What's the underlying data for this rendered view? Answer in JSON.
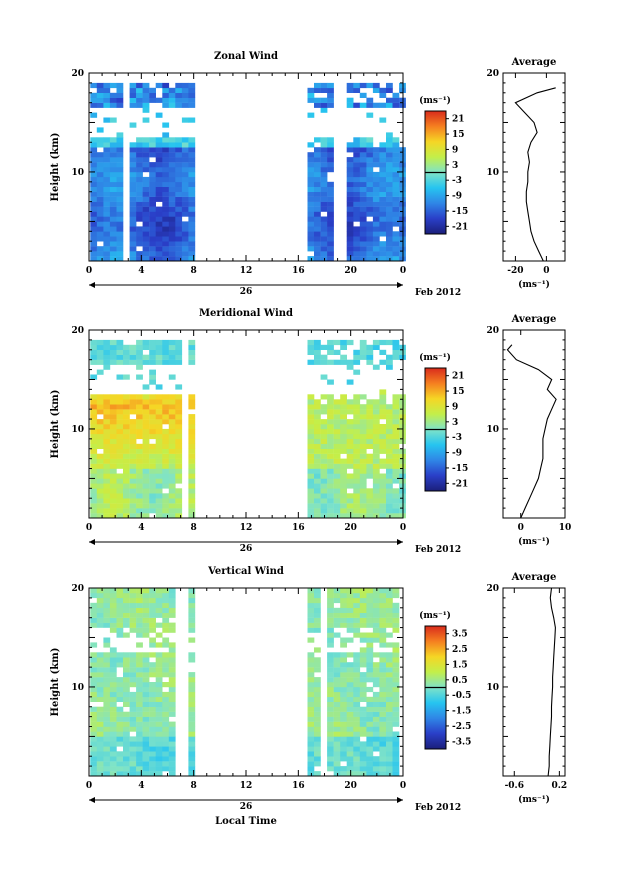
{
  "chart_data": [
    {
      "type": "heatmap",
      "title": "Zonal Wind",
      "ylabel": "Height (km)",
      "xlabel": "",
      "x_ticks": [
        "0",
        "4",
        "8",
        "12",
        "16",
        "20",
        "0"
      ],
      "y_ticks": [
        "10",
        "20"
      ],
      "xlim_hours": [
        0,
        24
      ],
      "ylim_km": [
        1,
        20
      ],
      "date_label": "26",
      "month_label": "Feb 2012",
      "unit_label": "(ms⁻¹)",
      "colorbar_ticks": [
        "21",
        "15",
        "9",
        "3",
        "-3",
        "-9",
        "-15",
        "-21"
      ],
      "colorbar_range": [
        -24,
        24
      ],
      "data_segments_hours": [
        [
          0.1,
          7.9
        ],
        [
          16.7,
          23.9
        ]
      ],
      "profile": {
        "title": "Average",
        "x_ticks": [
          "-20",
          "0"
        ],
        "x_tick_values": [
          -20,
          0
        ],
        "xlim": [
          -28,
          12
        ],
        "unit_label": "(ms⁻¹)",
        "y_ticks": [
          "10",
          "20"
        ],
        "heights_km": [
          1,
          2,
          3,
          4,
          5,
          6,
          7,
          8,
          9,
          10,
          11,
          12,
          13,
          14,
          15,
          16,
          17,
          18,
          18.5
        ],
        "values": [
          -2,
          -5,
          -8,
          -10,
          -11,
          -12,
          -13,
          -13,
          -12,
          -12,
          -11,
          -12,
          -10,
          -6,
          -8,
          -14,
          -20,
          -6,
          6
        ]
      }
    },
    {
      "type": "heatmap",
      "title": "Meridional Wind",
      "ylabel": "Height (km)",
      "xlabel": "",
      "x_ticks": [
        "0",
        "4",
        "8",
        "12",
        "16",
        "20",
        "0"
      ],
      "y_ticks": [
        "10",
        "20"
      ],
      "xlim_hours": [
        0,
        24
      ],
      "ylim_km": [
        1,
        20
      ],
      "date_label": "26",
      "month_label": "Feb 2012",
      "unit_label": "(ms⁻¹)",
      "colorbar_ticks": [
        "21",
        "15",
        "9",
        "3",
        "-3",
        "-9",
        "-15",
        "-21"
      ],
      "colorbar_range": [
        -24,
        24
      ],
      "data_segments_hours": [
        [
          0.1,
          7.9
        ],
        [
          16.7,
          23.9
        ]
      ],
      "profile": {
        "title": "Average",
        "x_ticks": [
          "0",
          "10"
        ],
        "x_tick_values": [
          0,
          10
        ],
        "xlim": [
          -4,
          10
        ],
        "unit_label": "(ms⁻¹)",
        "y_ticks": [
          "10",
          "20"
        ],
        "heights_km": [
          1,
          2,
          3,
          4,
          5,
          6,
          7,
          8,
          9,
          10,
          11,
          12,
          13,
          14,
          15,
          16,
          17,
          18,
          18.5
        ],
        "values": [
          0,
          1,
          2,
          3,
          4,
          4.5,
          5,
          5,
          5,
          5.5,
          6,
          7,
          8,
          6,
          7,
          4,
          -1,
          -3,
          -2
        ]
      }
    },
    {
      "type": "heatmap",
      "title": "Vertical Wind",
      "ylabel": "Height (km)",
      "xlabel": "Local Time",
      "x_ticks": [
        "0",
        "4",
        "8",
        "12",
        "16",
        "20",
        "0"
      ],
      "y_ticks": [
        "10",
        "20"
      ],
      "xlim_hours": [
        0,
        24
      ],
      "ylim_km": [
        1,
        20
      ],
      "date_label": "26",
      "month_label": "Feb 2012",
      "unit_label": "(ms⁻¹)",
      "colorbar_ticks": [
        "3.5",
        "2.5",
        "1.5",
        "0.5",
        "-0.5",
        "-1.5",
        "-2.5",
        "-3.5"
      ],
      "colorbar_range": [
        -4,
        4
      ],
      "data_segments_hours": [
        [
          0.1,
          7.9
        ],
        [
          16.7,
          23.9
        ]
      ],
      "profile": {
        "title": "Average",
        "x_ticks": [
          "-0.6",
          "0.2"
        ],
        "x_tick_values": [
          -0.6,
          0.2
        ],
        "xlim": [
          -0.8,
          0.3
        ],
        "unit_label": "(ms⁻¹)",
        "y_ticks": [
          "10",
          "20"
        ],
        "heights_km": [
          1,
          2,
          3,
          4,
          5,
          6,
          7,
          8,
          9,
          10,
          11,
          12,
          13,
          14,
          15,
          16,
          17,
          18,
          19,
          20
        ],
        "values": [
          0,
          0.02,
          0.02,
          0.03,
          0.04,
          0.05,
          0.06,
          0.06,
          0.07,
          0.08,
          0.08,
          0.09,
          0.1,
          0.11,
          0.12,
          0.13,
          0.1,
          0.06,
          0.04,
          0.06
        ]
      }
    }
  ]
}
